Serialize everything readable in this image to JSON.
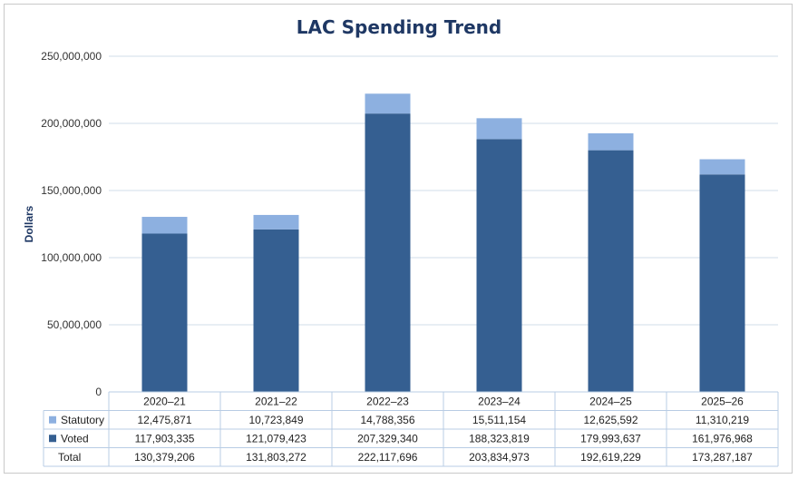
{
  "chart_data": {
    "type": "bar",
    "stacked": true,
    "title": "LAC Spending Trend",
    "ylabel": "Dollars",
    "xlabel": "",
    "ylim": [
      0,
      250000000
    ],
    "yticks": [
      "0",
      "50,000,000",
      "100,000,000",
      "150,000,000",
      "200,000,000",
      "250,000,000"
    ],
    "ytick_values": [
      0,
      50000000,
      100000000,
      150000000,
      200000000,
      250000000
    ],
    "grid": true,
    "categories": [
      "2020–21",
      "2021–22",
      "2022–23",
      "2023–24",
      "2024–25",
      "2025–26"
    ],
    "series": [
      {
        "name": "Voted",
        "color": "#355f91",
        "values": [
          117903335,
          121079423,
          207329340,
          188323819,
          179993637,
          161976968
        ],
        "labels": [
          "117,903,335",
          "121,079,423",
          "207,329,340",
          "188,323,819",
          "179,993,637",
          "161,976,968"
        ]
      },
      {
        "name": "Statutory",
        "color": "#8db0e0",
        "values": [
          12475871,
          10723849,
          14788356,
          15511154,
          12625592,
          11310219
        ],
        "labels": [
          "12,475,871",
          "10,723,849",
          "14,788,356",
          "15,511,154",
          "12,625,592",
          "11,310,219"
        ]
      }
    ],
    "data_table": {
      "row_order": [
        "Statutory",
        "Voted",
        "Total"
      ],
      "total_label": "Total",
      "totals": [
        130379206,
        131803272,
        222117696,
        203834973,
        192619229,
        173287187
      ],
      "total_labels": [
        "130,379,206",
        "131,803,272",
        "222,117,696",
        "203,834,973",
        "192,619,229",
        "173,287,187"
      ]
    }
  }
}
